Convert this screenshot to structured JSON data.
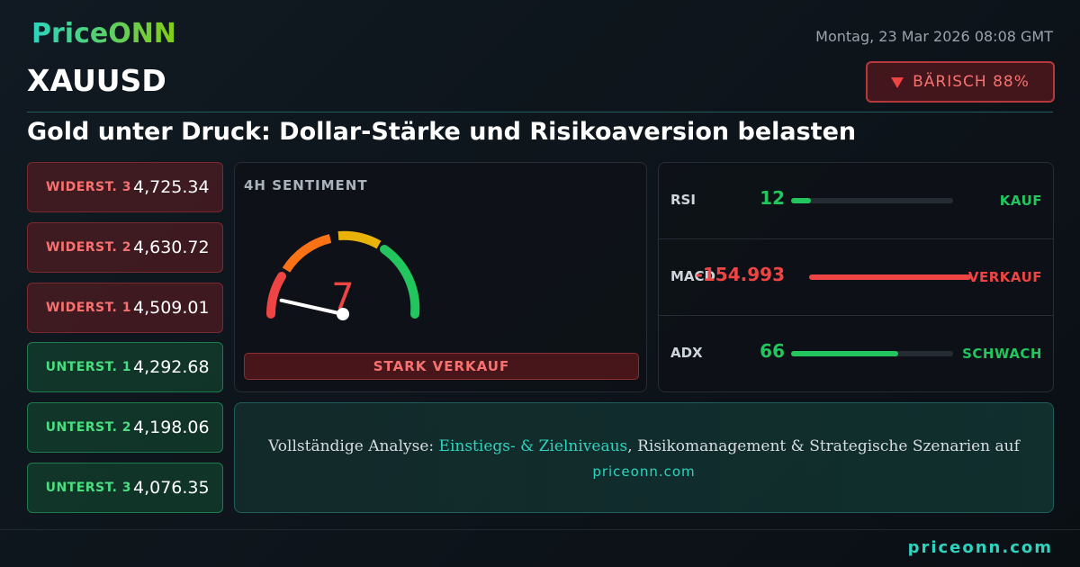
{
  "header": {
    "logo": "PriceONN",
    "date": "Montag, 23 Mar 2026 08:08 GMT",
    "symbol": "XAUUSD",
    "bias": "BÄRISCH 88%"
  },
  "headline": "Gold unter Druck: Dollar-Stärke und Risikoaversion belasten",
  "levels": [
    {
      "label": "WIDERST. 3",
      "value": "4,725.34",
      "kind": "resistance"
    },
    {
      "label": "WIDERST. 2",
      "value": "4,630.72",
      "kind": "resistance"
    },
    {
      "label": "WIDERST. 1",
      "value": "4,509.01",
      "kind": "resistance"
    },
    {
      "label": "UNTERST. 1",
      "value": "4,292.68",
      "kind": "support"
    },
    {
      "label": "UNTERST. 2",
      "value": "4,198.06",
      "kind": "support"
    },
    {
      "label": "UNTERST. 3",
      "value": "4,076.35",
      "kind": "support"
    }
  ],
  "sentiment": {
    "title": "4H SENTIMENT",
    "score": 7,
    "verdict": "STARK VERKAUF"
  },
  "indicators": [
    {
      "name": "RSI",
      "value": 12,
      "signal": "KAUF",
      "color": "#22c55e"
    },
    {
      "name": "MACD",
      "value": -154.993,
      "signal": "VERKAUF",
      "color": "#ef4444"
    },
    {
      "name": "ADX",
      "value": 66,
      "signal": "SCHWACH",
      "color": "#22c55e"
    }
  ],
  "footer": {
    "prefix": "Vollständige Analyse: ",
    "highlight": "Einstiegs- & Zielniveaus",
    "suffix": ", Risikomanagement & Strategische Szenarien auf",
    "link": "priceonn.com",
    "brand": "priceonn.com"
  }
}
